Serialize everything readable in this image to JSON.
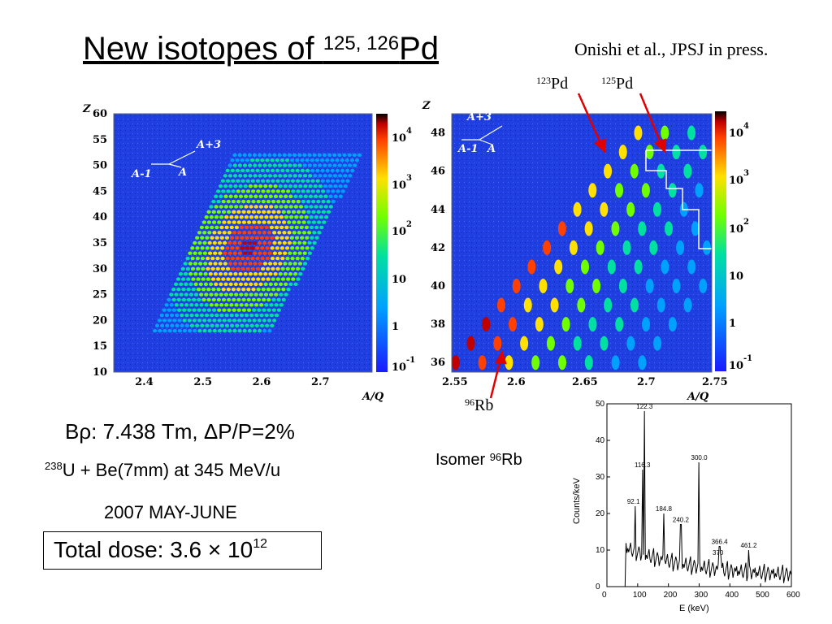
{
  "title": {
    "main": "New isotopes of ",
    "super": "125, 126",
    "element": "Pd"
  },
  "reference": "Onishi et al., JPSJ in press.",
  "labels": {
    "pd123": {
      "mass": "123",
      "el": "Pd"
    },
    "pd125": {
      "mass": "125",
      "el": "Pd"
    },
    "rb96": {
      "mass": "96",
      "el": "Rb"
    },
    "isomer": {
      "text": "Isomer ",
      "mass": "96",
      "el": "Rb"
    },
    "arrow_a3": "A+3",
    "arrow_a1": "A-1",
    "arrow_a": "A"
  },
  "conditions": {
    "brho": "Bρ: 7.438 Tm, ΔP/P=2%",
    "beam_mass": "238",
    "beam": "U + Be(7mm) at 345 MeV/u",
    "date": "2007 MAY-JUNE",
    "dose_text": "Total dose: 3.6 × 10",
    "dose_exp": "12"
  },
  "colors": {
    "pid_background": "#1a3fd8",
    "marker_arrow": "#e00000",
    "spectrum_line": "#000000"
  },
  "chart_data": [
    {
      "type": "heatmap",
      "title": "",
      "xlabel": "A/Q",
      "ylabel": "Z",
      "xlim": [
        2.35,
        2.79
      ],
      "ylim": [
        10,
        60
      ],
      "x_ticks": [
        "2.4",
        "2.5",
        "2.6",
        "2.7"
      ],
      "y_ticks": [
        "10",
        "15",
        "20",
        "25",
        "30",
        "35",
        "40",
        "45",
        "50",
        "55",
        "60"
      ],
      "colorbar_scale": "log",
      "colorbar_ticks": [
        "-1\n10",
        "1",
        "10",
        "2\n10",
        "3\n10",
        "4\n10"
      ],
      "annotations": [
        "A+3",
        "A-1",
        "A"
      ]
    },
    {
      "type": "heatmap",
      "title": "",
      "xlabel": "A/Q",
      "ylabel": "Z",
      "xlim": [
        2.55,
        2.75
      ],
      "ylim": [
        35.5,
        49
      ],
      "x_ticks": [
        "2.55",
        "2.6",
        "2.65",
        "2.7",
        "2.75"
      ],
      "y_ticks": [
        "36",
        "38",
        "40",
        "42",
        "44",
        "46",
        "48"
      ],
      "colorbar_scale": "log",
      "colorbar_ticks": [
        "-1\n10",
        "1",
        "10",
        "2\n10",
        "3\n10",
        "4\n10"
      ],
      "annotations": [
        "A+3",
        "A-1",
        "A"
      ]
    },
    {
      "type": "line",
      "title": "",
      "xlabel": "E (keV)",
      "ylabel": "Counts/keV",
      "xlim": [
        0,
        600
      ],
      "ylim": [
        0,
        50
      ],
      "x_ticks": [
        "0",
        "100",
        "200",
        "300",
        "400",
        "500",
        "600"
      ],
      "y_ticks": [
        "0",
        "10",
        "20",
        "30",
        "40",
        "50"
      ],
      "peaks": [
        {
          "energy": 92.1,
          "counts": 22,
          "label": "92.1"
        },
        {
          "energy": 116.3,
          "counts": 32,
          "label": "116.3"
        },
        {
          "energy": 122.3,
          "counts": 48,
          "label": "122.3"
        },
        {
          "energy": 184.8,
          "counts": 20,
          "label": "184.8"
        },
        {
          "energy": 240.2,
          "counts": 17,
          "label": "240.2"
        },
        {
          "energy": 300.0,
          "counts": 34,
          "label": "300.0"
        },
        {
          "energy": 366.4,
          "counts": 11,
          "label": "366.4"
        },
        {
          "energy": 370,
          "counts": 8,
          "label": "370"
        },
        {
          "energy": 461.2,
          "counts": 10,
          "label": "461.2"
        }
      ]
    }
  ]
}
